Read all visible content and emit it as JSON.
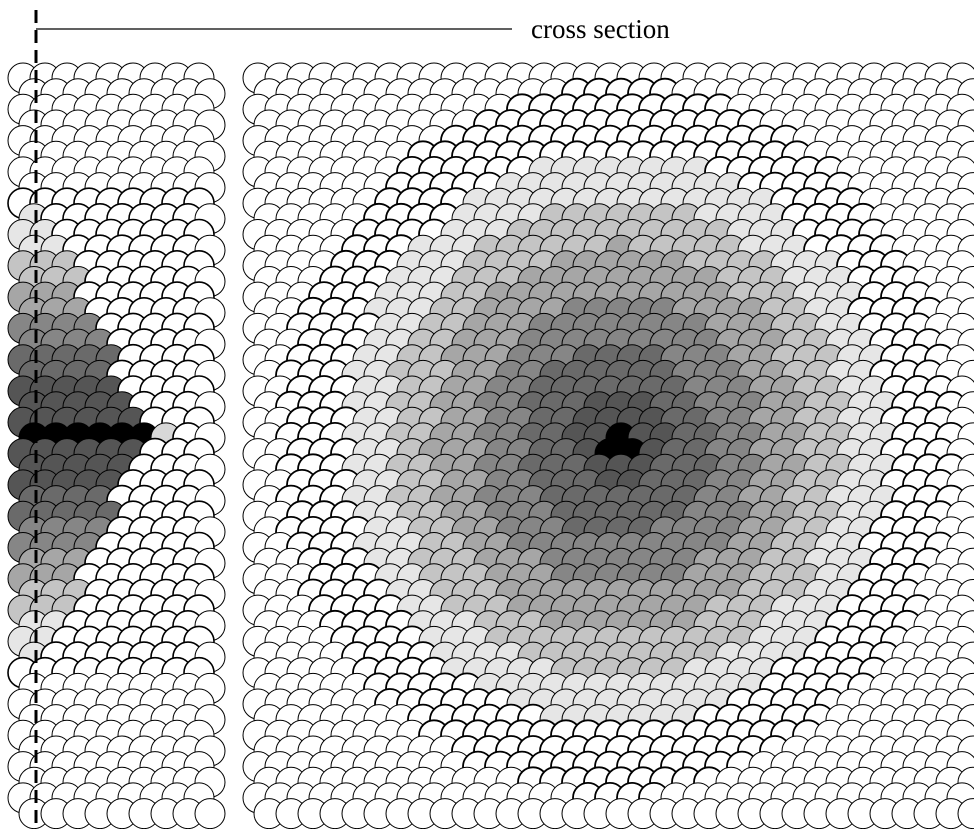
{
  "label": "cross section",
  "colors": {
    "outline": "#000000",
    "background": "#ffffff",
    "shade_levels": [
      "#ffffff",
      "#e6e6e6",
      "#c4c4c4",
      "#a6a6a6",
      "#868686",
      "#6a6a6a",
      "#555555",
      "#000000"
    ]
  }
}
